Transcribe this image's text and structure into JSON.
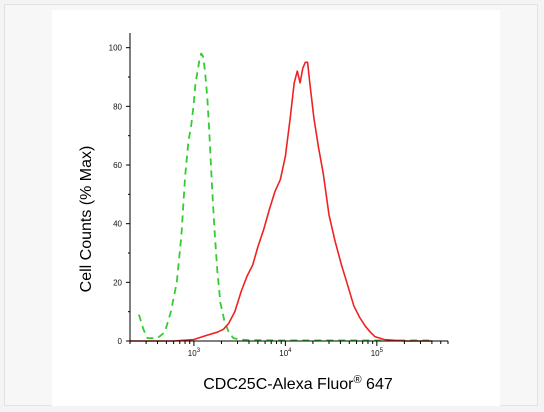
{
  "chart_data": {
    "type": "line",
    "xlabel_main": "CDC25C-Alexa Fluor",
    "xlabel_sup": "®",
    "xlabel_tail": " 647",
    "ylabel": "Cell Counts (% Max)",
    "x_scale": "log",
    "xlim": [
      200,
      600000
    ],
    "ylim": [
      0,
      105
    ],
    "x_ticks": [
      {
        "value": 1000,
        "base": "10",
        "exp": "3"
      },
      {
        "value": 10000,
        "base": "10",
        "exp": "4"
      },
      {
        "value": 100000,
        "base": "10",
        "exp": "5"
      }
    ],
    "y_ticks": [
      "0",
      "20",
      "40",
      "60",
      "80",
      "100"
    ],
    "grid": false,
    "legend": "none",
    "series": [
      {
        "color": "#33cc33",
        "style": "dashed",
        "x": [
          250,
          280,
          310,
          350,
          400,
          480,
          560,
          650,
          730,
          800,
          870,
          930,
          990,
          1040,
          1100,
          1150,
          1200,
          1260,
          1320,
          1400,
          1480,
          1570,
          1680,
          1800,
          1950,
          2150,
          2400,
          2700,
          3200,
          4000,
          10000,
          100000,
          400000
        ],
        "y": [
          9,
          4,
          1,
          1,
          1,
          3,
          10,
          20,
          36,
          56,
          68,
          73,
          80,
          88,
          92,
          96,
          98,
          97,
          92,
          83,
          70,
          54,
          38,
          24,
          13,
          7,
          3,
          1,
          0.5,
          0.3,
          0.2,
          0.2,
          0.2
        ]
      },
      {
        "color": "#ee2222",
        "style": "solid",
        "x": [
          200,
          600,
          1000,
          1400,
          1800,
          2100,
          2400,
          2800,
          3300,
          3800,
          4400,
          5000,
          5800,
          6700,
          7700,
          8800,
          10000,
          11300,
          12500,
          13500,
          14500,
          15500,
          16500,
          17500,
          18500,
          20500,
          23000,
          26000,
          30000,
          35000,
          41000,
          48000,
          56000,
          65000,
          75000,
          85000,
          95000,
          120000,
          200000,
          400000
        ],
        "y": [
          0,
          0,
          0.5,
          2,
          3,
          4,
          6,
          10,
          17,
          22,
          26,
          32,
          38,
          45,
          51,
          55,
          63,
          76,
          88,
          92,
          88,
          93,
          95,
          95,
          88,
          76,
          66,
          57,
          43,
          34,
          26,
          19,
          12,
          8,
          5,
          3,
          1.5,
          0.5,
          0,
          0
        ]
      }
    ]
  }
}
